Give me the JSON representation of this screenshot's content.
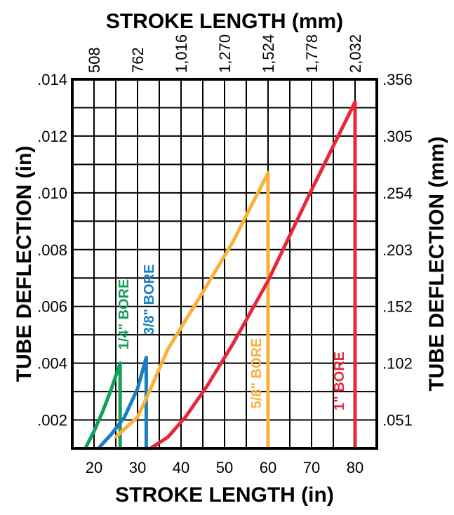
{
  "chart_data": {
    "type": "line",
    "xlabel": "STROKE LENGTH (in)",
    "x2label": "STROKE LENGTH (mm)",
    "ylabel": "TUBE DEFLECTION (in)",
    "y2label": "TUBE DEFLECTION (mm)",
    "xlim": [
      15,
      85
    ],
    "ylim": [
      0.001,
      0.014
    ],
    "grid": true,
    "x_ticks": [
      "20",
      "30",
      "40",
      "50",
      "60",
      "70",
      "80"
    ],
    "x2_ticks": [
      "508",
      "762",
      "1,016",
      "1,270",
      "1,524",
      "1,778",
      "2,032"
    ],
    "y_ticks": [
      ".002",
      ".004",
      ".006",
      ".008",
      ".010",
      ".012",
      ".014"
    ],
    "y2_ticks": [
      ".051",
      ".102",
      ".152",
      ".203",
      ".254",
      ".305",
      ".356"
    ],
    "series": [
      {
        "name": "1/4\" BORE",
        "color": "#10a05a",
        "points": [
          [
            18,
            0.001
          ],
          [
            20,
            0.0016
          ],
          [
            22,
            0.0023
          ],
          [
            24,
            0.0031
          ],
          [
            26,
            0.004
          ],
          [
            26,
            0.001
          ]
        ]
      },
      {
        "name": "3/8\" BORE",
        "color": "#1a7fc0",
        "points": [
          [
            21,
            0.001
          ],
          [
            24,
            0.0015
          ],
          [
            27,
            0.0021
          ],
          [
            30,
            0.0031
          ],
          [
            32,
            0.0042
          ],
          [
            32,
            0.001
          ]
        ]
      },
      {
        "name": "5/8\" BORE",
        "color": "#fbb03b",
        "points": [
          [
            25,
            0.0014
          ],
          [
            30,
            0.0021
          ],
          [
            33,
            0.0031
          ],
          [
            37,
            0.0045
          ],
          [
            45,
            0.0065
          ],
          [
            52,
            0.0083
          ],
          [
            60,
            0.0107
          ],
          [
            60,
            0.001
          ]
        ]
      },
      {
        "name": "1\" BORE",
        "color": "#e8283a",
        "points": [
          [
            33,
            0.001
          ],
          [
            37,
            0.0014
          ],
          [
            41,
            0.0021
          ],
          [
            46,
            0.0032
          ],
          [
            52,
            0.0047
          ],
          [
            60,
            0.0069
          ],
          [
            70,
            0.0101
          ],
          [
            80,
            0.0132
          ],
          [
            80,
            0.001
          ]
        ]
      }
    ]
  }
}
